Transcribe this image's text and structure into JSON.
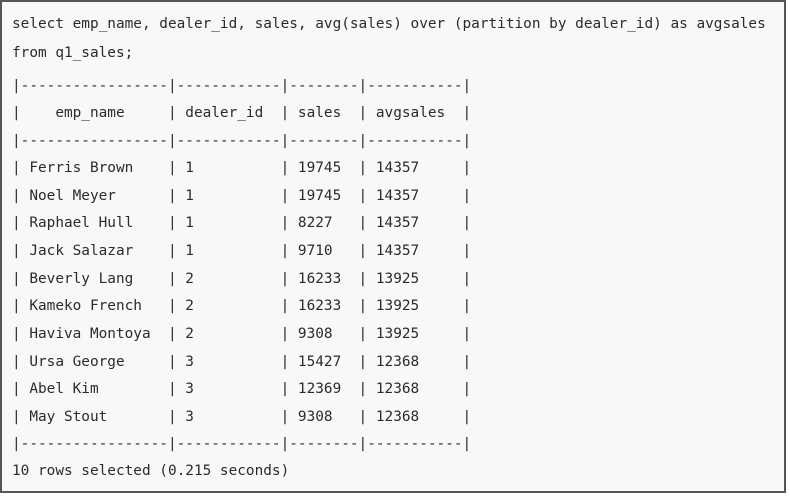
{
  "query": {
    "line1": "select emp_name, dealer_id, sales, avg(sales) over (partition by dealer_id) as avgsales",
    "line2": "from q1_sales;"
  },
  "table": {
    "separator": "|-----------------|------------|--------|-----------|",
    "header": "|    emp_name     | dealer_id  | sales  | avgsales  |",
    "rows": [
      "| Ferris Brown    | 1          | 19745  | 14357     |",
      "| Noel Meyer      | 1          | 19745  | 14357     |",
      "| Raphael Hull    | 1          | 8227   | 14357     |",
      "| Jack Salazar    | 1          | 9710   | 14357     |",
      "| Beverly Lang    | 2          | 16233  | 13925     |",
      "| Kameko French   | 2          | 16233  | 13925     |",
      "| Haviva Montoya  | 2          | 9308   | 13925     |",
      "| Ursa George     | 3          | 15427  | 12368     |",
      "| Abel Kim        | 3          | 12369  | 12368     |",
      "| May Stout       | 3          | 9308   | 12368     |"
    ]
  },
  "status": "10 rows selected (0.215 seconds)"
}
